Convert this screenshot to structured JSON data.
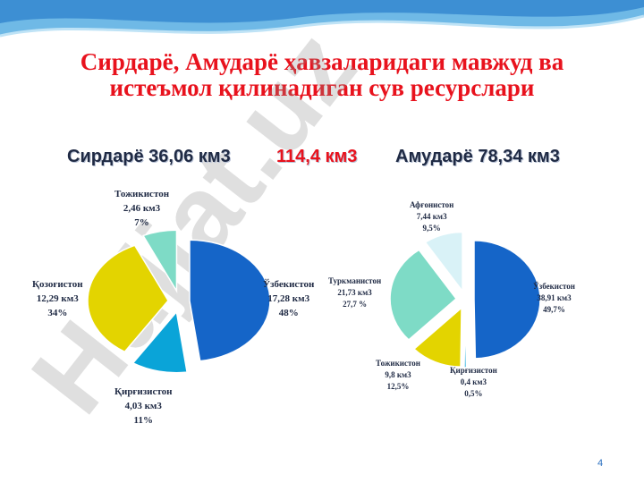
{
  "slide": {
    "title_line1": "Сирдарё, Амударё ҳавзаларидаги мавжуд ва",
    "title_line2": "истеъмол қилинадиган сув ресурслари",
    "sirdarya_heading": "Сирдарё 36,06 км3",
    "total_heading": "114,4 км3",
    "amudarya_heading": "Амударё 78,34 км3",
    "watermark_text": "Hujjat.uz",
    "page_number": "4"
  },
  "chart_data": [
    {
      "type": "pie",
      "title": "Сирдарё 36,06 км3",
      "slices": [
        {
          "name": "Ўзбекистон",
          "value_text": "17,28 км3",
          "percent_text": "48%",
          "value": 17.28,
          "color": "#1565c8"
        },
        {
          "name": "Қирғизистон",
          "value_text": "4,03 км3",
          "percent_text": "11%",
          "value": 4.03,
          "color": "#0aa4d8"
        },
        {
          "name": "Қозоғистон",
          "value_text": "12,29 км3",
          "percent_text": "34%",
          "value": 12.29,
          "color": "#e3d400"
        },
        {
          "name": "Тожикистон",
          "value_text": "2,46 км3",
          "percent_text": "7%",
          "value": 2.46,
          "color": "#7edbc6"
        }
      ]
    },
    {
      "type": "pie",
      "title": "Амударё 78,34 км3",
      "slices": [
        {
          "name": "Ўзбекистон",
          "value_text": "38,91 км3",
          "percent_text": "49,7%",
          "value": 38.91,
          "color": "#1565c8"
        },
        {
          "name": "Қирғизистон",
          "value_text": "0,4 км3",
          "percent_text": "0,5%",
          "value": 0.4,
          "color": "#0aa4d8"
        },
        {
          "name": "Тожикистон",
          "value_text": "9,8 км3",
          "percent_text": "12,5%",
          "value": 9.8,
          "color": "#e3d400"
        },
        {
          "name": "Туркманистон",
          "value_text": "21,73 км3",
          "percent_text": "27,7 %",
          "value": 21.73,
          "color": "#7edbc6"
        },
        {
          "name": "Афғонистон",
          "value_text": "7,44 км3",
          "percent_text": "9,5%",
          "value": 7.44,
          "color": "#d9f2f7"
        }
      ]
    }
  ]
}
